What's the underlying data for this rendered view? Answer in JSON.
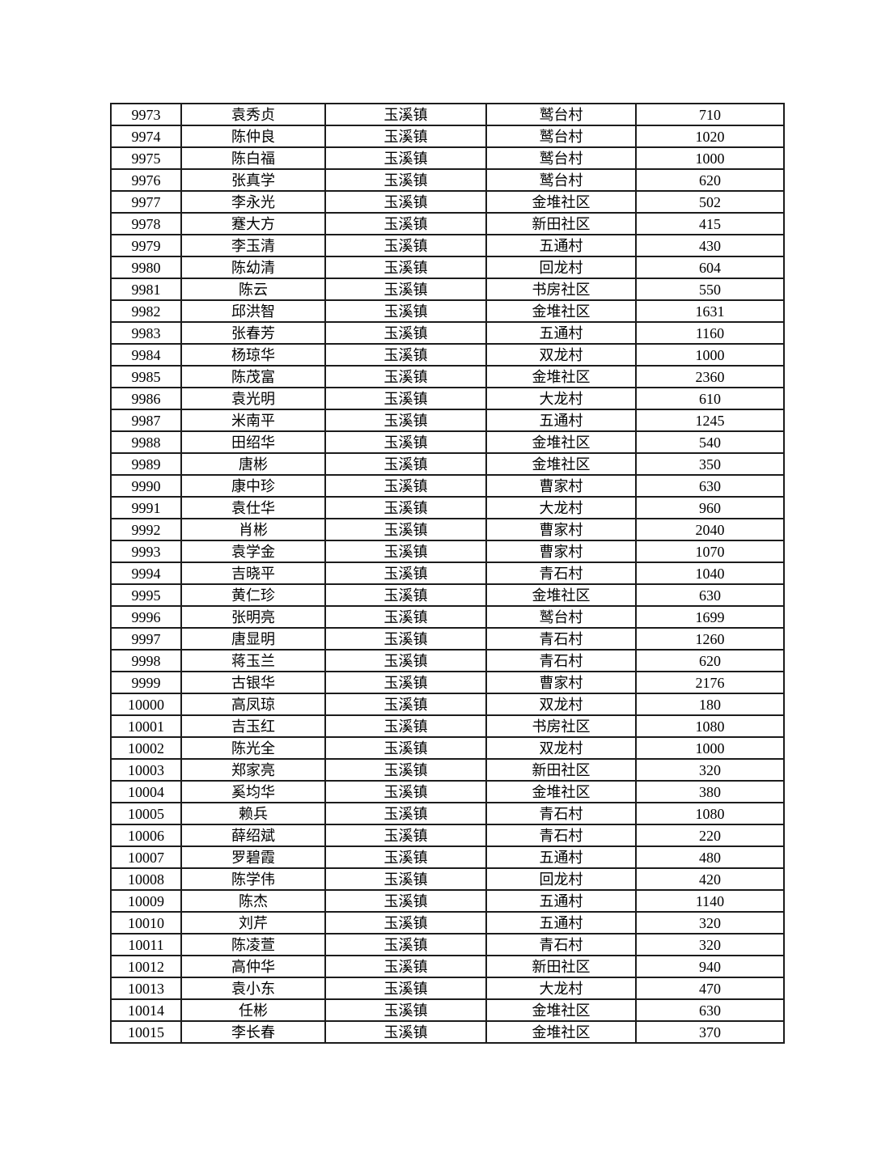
{
  "table": {
    "rows": [
      {
        "serial": "9973",
        "name": "袁秀贞",
        "town": "玉溪镇",
        "village": "鹫台村",
        "amount": "710"
      },
      {
        "serial": "9974",
        "name": "陈仲良",
        "town": "玉溪镇",
        "village": "鹫台村",
        "amount": "1020"
      },
      {
        "serial": "9975",
        "name": "陈白福",
        "town": "玉溪镇",
        "village": "鹫台村",
        "amount": "1000"
      },
      {
        "serial": "9976",
        "name": "张真学",
        "town": "玉溪镇",
        "village": "鹫台村",
        "amount": "620"
      },
      {
        "serial": "9977",
        "name": "李永光",
        "town": "玉溪镇",
        "village": "金堆社区",
        "amount": "502"
      },
      {
        "serial": "9978",
        "name": "蹇大方",
        "town": "玉溪镇",
        "village": "新田社区",
        "amount": "415"
      },
      {
        "serial": "9979",
        "name": "李玉清",
        "town": "玉溪镇",
        "village": "五通村",
        "amount": "430"
      },
      {
        "serial": "9980",
        "name": "陈幼清",
        "town": "玉溪镇",
        "village": "回龙村",
        "amount": "604"
      },
      {
        "serial": "9981",
        "name": "陈云",
        "town": "玉溪镇",
        "village": "书房社区",
        "amount": "550"
      },
      {
        "serial": "9982",
        "name": "邱洪智",
        "town": "玉溪镇",
        "village": "金堆社区",
        "amount": "1631"
      },
      {
        "serial": "9983",
        "name": "张春芳",
        "town": "玉溪镇",
        "village": "五通村",
        "amount": "1160"
      },
      {
        "serial": "9984",
        "name": "杨琼华",
        "town": "玉溪镇",
        "village": "双龙村",
        "amount": "1000"
      },
      {
        "serial": "9985",
        "name": "陈茂富",
        "town": "玉溪镇",
        "village": "金堆社区",
        "amount": "2360"
      },
      {
        "serial": "9986",
        "name": "袁光明",
        "town": "玉溪镇",
        "village": "大龙村",
        "amount": "610"
      },
      {
        "serial": "9987",
        "name": "米南平",
        "town": "玉溪镇",
        "village": "五通村",
        "amount": "1245"
      },
      {
        "serial": "9988",
        "name": "田绍华",
        "town": "玉溪镇",
        "village": "金堆社区",
        "amount": "540"
      },
      {
        "serial": "9989",
        "name": "唐彬",
        "town": "玉溪镇",
        "village": "金堆社区",
        "amount": "350"
      },
      {
        "serial": "9990",
        "name": "康中珍",
        "town": "玉溪镇",
        "village": "曹家村",
        "amount": "630"
      },
      {
        "serial": "9991",
        "name": "袁仕华",
        "town": "玉溪镇",
        "village": "大龙村",
        "amount": "960"
      },
      {
        "serial": "9992",
        "name": "肖彬",
        "town": "玉溪镇",
        "village": "曹家村",
        "amount": "2040"
      },
      {
        "serial": "9993",
        "name": "袁学金",
        "town": "玉溪镇",
        "village": "曹家村",
        "amount": "1070"
      },
      {
        "serial": "9994",
        "name": "吉晓平",
        "town": "玉溪镇",
        "village": "青石村",
        "amount": "1040"
      },
      {
        "serial": "9995",
        "name": "黄仁珍",
        "town": "玉溪镇",
        "village": "金堆社区",
        "amount": "630"
      },
      {
        "serial": "9996",
        "name": "张明亮",
        "town": "玉溪镇",
        "village": "鹫台村",
        "amount": "1699"
      },
      {
        "serial": "9997",
        "name": "唐显明",
        "town": "玉溪镇",
        "village": "青石村",
        "amount": "1260"
      },
      {
        "serial": "9998",
        "name": "蒋玉兰",
        "town": "玉溪镇",
        "village": "青石村",
        "amount": "620"
      },
      {
        "serial": "9999",
        "name": "古银华",
        "town": "玉溪镇",
        "village": "曹家村",
        "amount": "2176"
      },
      {
        "serial": "10000",
        "name": "高凤琼",
        "town": "玉溪镇",
        "village": "双龙村",
        "amount": "180"
      },
      {
        "serial": "10001",
        "name": "吉玉红",
        "town": "玉溪镇",
        "village": "书房社区",
        "amount": "1080"
      },
      {
        "serial": "10002",
        "name": "陈光全",
        "town": "玉溪镇",
        "village": "双龙村",
        "amount": "1000"
      },
      {
        "serial": "10003",
        "name": "郑家亮",
        "town": "玉溪镇",
        "village": "新田社区",
        "amount": "320"
      },
      {
        "serial": "10004",
        "name": "奚均华",
        "town": "玉溪镇",
        "village": "金堆社区",
        "amount": "380"
      },
      {
        "serial": "10005",
        "name": "赖兵",
        "town": "玉溪镇",
        "village": "青石村",
        "amount": "1080"
      },
      {
        "serial": "10006",
        "name": "薛绍斌",
        "town": "玉溪镇",
        "village": "青石村",
        "amount": "220"
      },
      {
        "serial": "10007",
        "name": "罗碧霞",
        "town": "玉溪镇",
        "village": "五通村",
        "amount": "480"
      },
      {
        "serial": "10008",
        "name": "陈学伟",
        "town": "玉溪镇",
        "village": "回龙村",
        "amount": "420"
      },
      {
        "serial": "10009",
        "name": "陈杰",
        "town": "玉溪镇",
        "village": "五通村",
        "amount": "1140"
      },
      {
        "serial": "10010",
        "name": "刘芹",
        "town": "玉溪镇",
        "village": "五通村",
        "amount": "320"
      },
      {
        "serial": "10011",
        "name": "陈凌萱",
        "town": "玉溪镇",
        "village": "青石村",
        "amount": "320"
      },
      {
        "serial": "10012",
        "name": "高仲华",
        "town": "玉溪镇",
        "village": "新田社区",
        "amount": "940"
      },
      {
        "serial": "10013",
        "name": "袁小东",
        "town": "玉溪镇",
        "village": "大龙村",
        "amount": "470"
      },
      {
        "serial": "10014",
        "name": "任彬",
        "town": "玉溪镇",
        "village": "金堆社区",
        "amount": "630"
      },
      {
        "serial": "10015",
        "name": "李长春",
        "town": "玉溪镇",
        "village": "金堆社区",
        "amount": "370"
      }
    ]
  }
}
